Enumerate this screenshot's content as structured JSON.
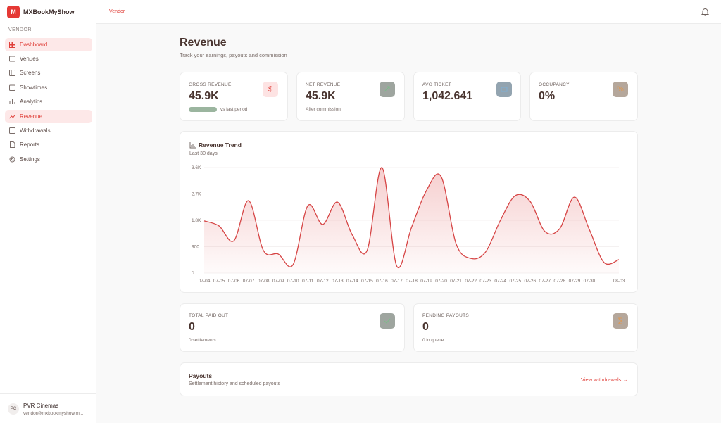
{
  "brand": {
    "logo": "M",
    "name": "MXBookMyShow"
  },
  "sidebar": {
    "section": "VENDOR",
    "nav": [
      "Dashboard",
      "Venues",
      "Screens",
      "Showtimes",
      "Analytics",
      "Revenue",
      "Withdrawals",
      "Reports",
      "Settings"
    ],
    "user": {
      "initials": "PC",
      "name": "PVR Cinemas",
      "email": "vendor@mxbookmyshow.m..."
    }
  },
  "topbar": {
    "breadcrumb": "Vendor"
  },
  "page": {
    "title": "Revenue",
    "subtitle": "Track your earnings, payouts and commission"
  },
  "stats": [
    {
      "label": "GROSS REVENUE",
      "value": "45.9K",
      "note": "vs last period",
      "icon": "$"
    },
    {
      "label": "NET REVENUE",
      "value": "45.9K",
      "note": "After commission"
    },
    {
      "label": "AVG TICKET",
      "value": "1,042.641"
    },
    {
      "label": "OCCUPANCY",
      "value": "0%",
      "icon": "%"
    }
  ],
  "chart_data": {
    "type": "line",
    "title": "Revenue Trend",
    "subtitle": "Last 30 days",
    "categories": [
      "07-04",
      "07-05",
      "07-06",
      "07-07",
      "07-08",
      "07-09",
      "07-10",
      "07-11",
      "07-12",
      "07-13",
      "07-14",
      "07-15",
      "07-16",
      "07-17",
      "07-18",
      "07-19",
      "07-20",
      "07-21",
      "07-22",
      "07-23",
      "07-24",
      "07-25",
      "07-26",
      "07-27",
      "07-28",
      "07-29",
      "07-30",
      null,
      "08-03"
    ],
    "values": [
      1780,
      1610,
      1100,
      2470,
      770,
      650,
      290,
      2300,
      1660,
      2420,
      1300,
      770,
      3600,
      240,
      1560,
      2810,
      3290,
      1010,
      500,
      720,
      1800,
      2640,
      2450,
      1420,
      1510,
      2590,
      1490,
      360,
      460
    ],
    "color": "#d64545",
    "ylim": [
      0,
      3600
    ],
    "yticks": [
      0,
      900,
      {
        "value": 1800,
        "label": "1.8K"
      },
      {
        "value": 2700,
        "label": "2.7K"
      },
      {
        "value": 3600,
        "label": "3.6K"
      }
    ],
    "grid": true
  },
  "payout_stats": [
    {
      "label": "TOTAL PAID OUT",
      "value": "0",
      "note": "0 settlements"
    },
    {
      "label": "PENDING PAYOUTS",
      "value": "0",
      "note": "0 in queue"
    }
  ],
  "payouts": {
    "title": "Payouts",
    "subtitle": "Settlement history and scheduled payouts",
    "link": "View withdrawals →"
  }
}
